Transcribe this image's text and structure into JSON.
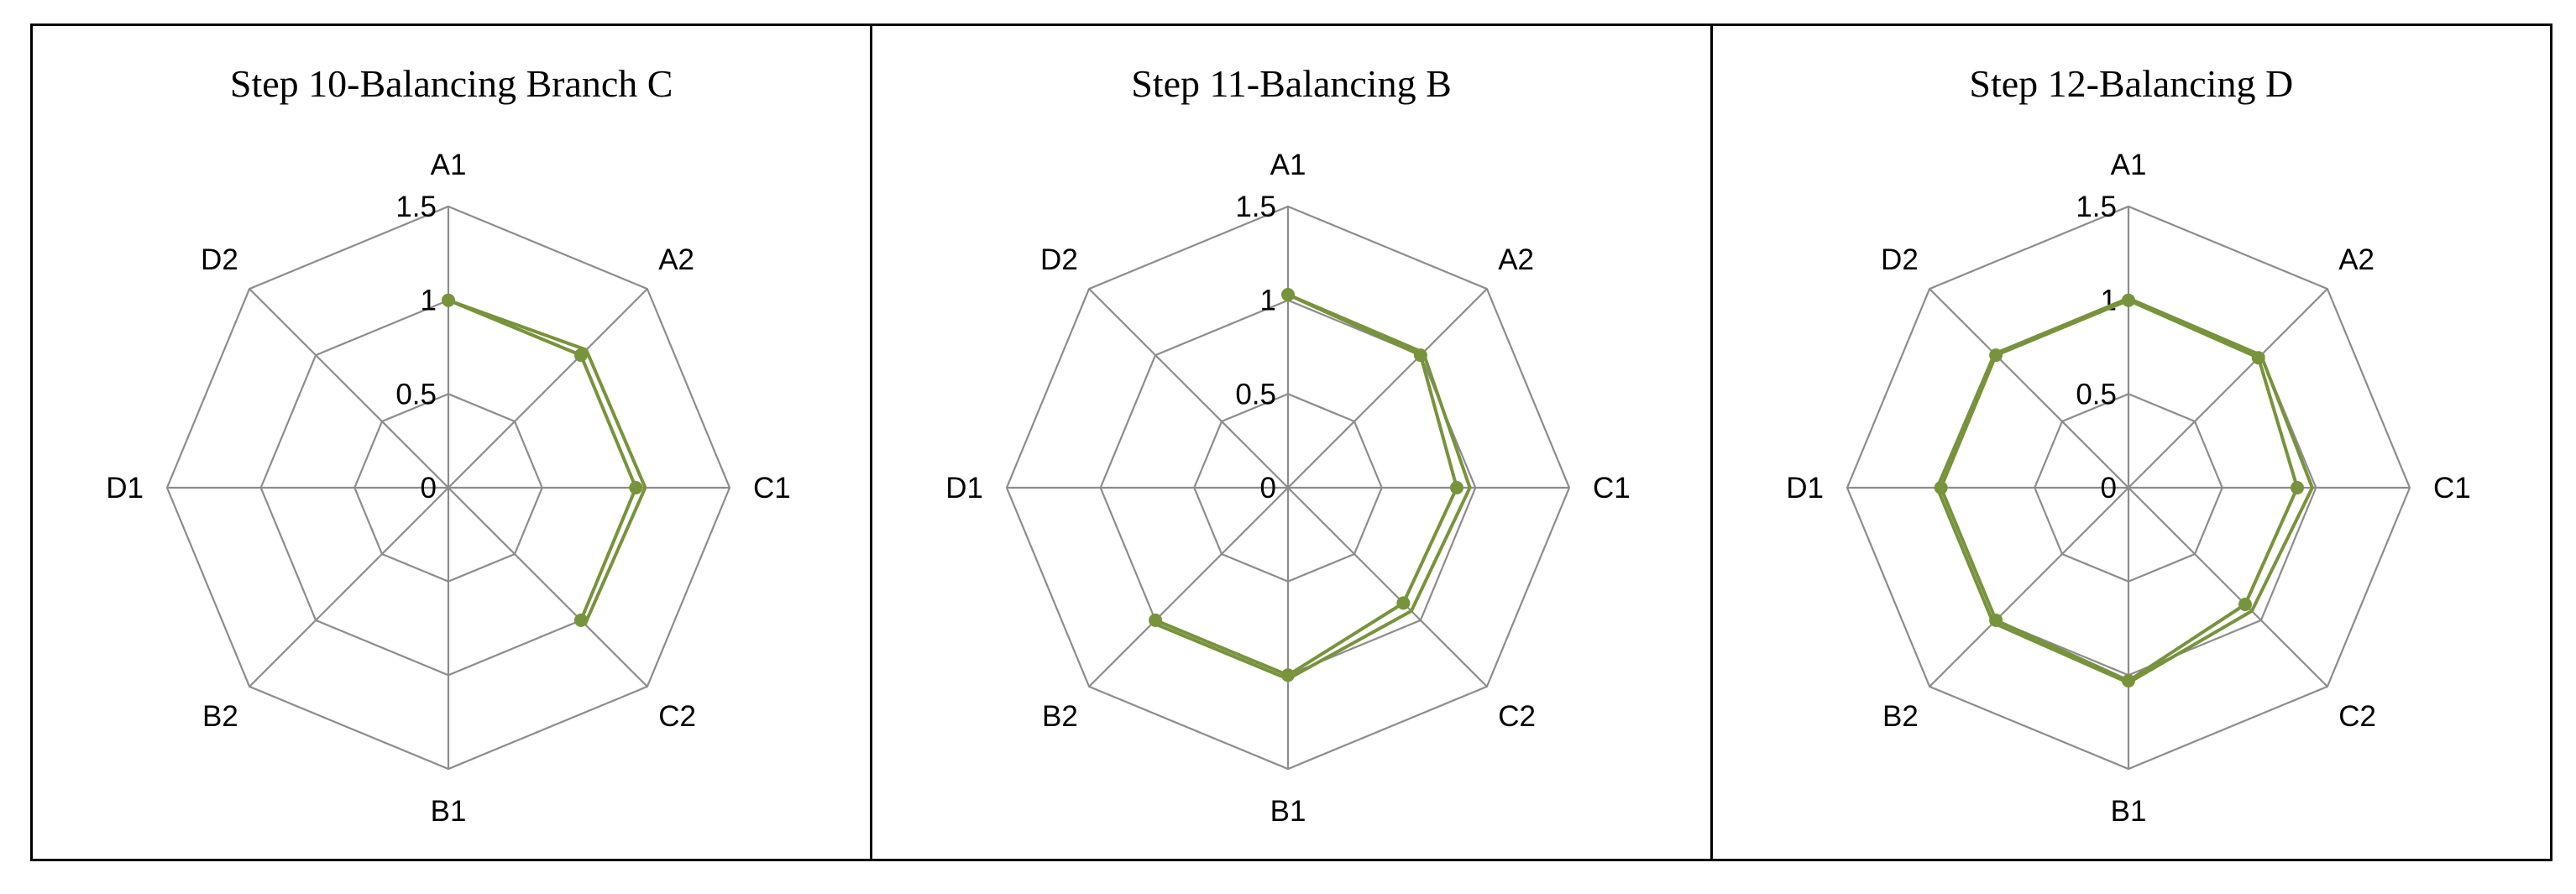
{
  "chart_data": [
    {
      "type": "radar",
      "title": "Step 10-Balancing Branch C",
      "categories": [
        "A1",
        "A2",
        "C1",
        "C2",
        "B1",
        "B2",
        "D1",
        "D2"
      ],
      "radial_ticks": [
        "0",
        "0.5",
        "1",
        "1.5"
      ],
      "rlim": [
        0,
        1.5
      ],
      "grid": true,
      "legend": "none",
      "series": [
        {
          "values": [
            1.0,
            1.0,
            1.0,
            1.0,
            0,
            0,
            0,
            0
          ]
        },
        {
          "values": [
            1.0,
            1.04,
            1.05,
            1.03,
            0,
            0,
            0,
            0
          ]
        }
      ]
    },
    {
      "type": "radar",
      "title": "Step 11-Balancing B",
      "categories": [
        "A1",
        "A2",
        "C1",
        "C2",
        "B1",
        "B2",
        "D1",
        "D2"
      ],
      "radial_ticks": [
        "0",
        "0.5",
        "1",
        "1.5"
      ],
      "rlim": [
        0,
        1.5
      ],
      "grid": true,
      "legend": "none",
      "series": [
        {
          "values": [
            1.03,
            1.0,
            0.9,
            0.87,
            1.0,
            1.0,
            0,
            0
          ]
        },
        {
          "values": [
            1.03,
            1.02,
            0.97,
            0.93,
            1.02,
            1.02,
            0,
            0
          ]
        }
      ]
    },
    {
      "type": "radar",
      "title": "Step 12-Balancing D",
      "categories": [
        "A1",
        "A2",
        "C1",
        "C2",
        "B1",
        "B2",
        "D1",
        "D2"
      ],
      "radial_ticks": [
        "0",
        "0.5",
        "1",
        "1.5"
      ],
      "rlim": [
        0,
        1.5
      ],
      "grid": true,
      "legend": "none",
      "series": [
        {
          "values": [
            1.0,
            0.98,
            0.9,
            0.88,
            1.03,
            1.0,
            1.0,
            1.0
          ]
        },
        {
          "values": [
            1.01,
            1.0,
            0.98,
            0.93,
            1.04,
            1.02,
            1.02,
            1.01
          ]
        }
      ]
    }
  ],
  "colors": {
    "grid": "#8c8c8c",
    "series": "#77933c",
    "frame": "#000000"
  }
}
